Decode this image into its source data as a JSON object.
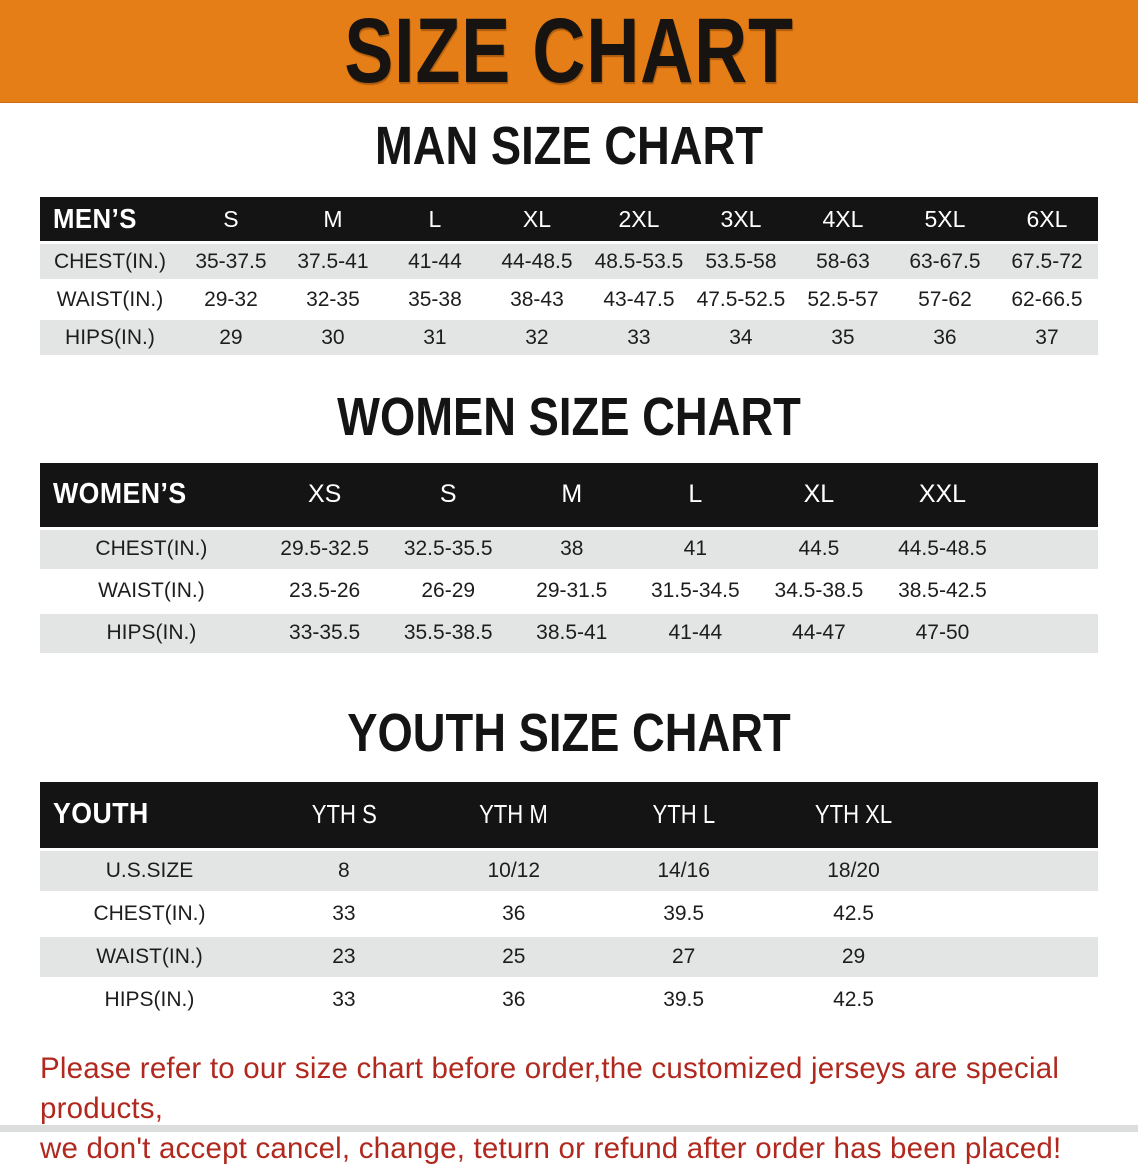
{
  "banner": {
    "title": "SIZE CHART"
  },
  "colors": {
    "banner_bg": "#E67E17",
    "table_header_bg": "#141414",
    "shaded_row_bg": "#E3E5E4",
    "note_text": "#B0281E"
  },
  "sections": {
    "men": {
      "heading": "MAN SIZE CHART",
      "table": {
        "label": "MEN’S",
        "columns": [
          "S",
          "M",
          "L",
          "XL",
          "2XL",
          "3XL",
          "4XL",
          "5XL",
          "6XL"
        ],
        "rows": [
          {
            "label": "CHEST(IN.)",
            "values": [
              "35-37.5",
              "37.5-41",
              "41-44",
              "44-48.5",
              "48.5-53.5",
              "53.5-58",
              "58-63",
              "63-67.5",
              "67.5-72"
            ]
          },
          {
            "label": "WAIST(IN.)",
            "values": [
              "29-32",
              "32-35",
              "35-38",
              "38-43",
              "43-47.5",
              "47.5-52.5",
              "52.5-57",
              "57-62",
              "62-66.5"
            ]
          },
          {
            "label": "HIPS(IN.)",
            "values": [
              "29",
              "30",
              "31",
              "32",
              "33",
              "34",
              "35",
              "36",
              "37"
            ]
          }
        ]
      }
    },
    "women": {
      "heading": "WOMEN SIZE CHART",
      "table": {
        "label": "WOMEN’S",
        "columns": [
          "XS",
          "S",
          "M",
          "L",
          "XL",
          "XXL"
        ],
        "rows": [
          {
            "label": "CHEST(IN.)",
            "values": [
              "29.5-32.5",
              "32.5-35.5",
              "38",
              "41",
              "44.5",
              "44.5-48.5"
            ]
          },
          {
            "label": "WAIST(IN.)",
            "values": [
              "23.5-26",
              "26-29",
              "29-31.5",
              "31.5-34.5",
              "34.5-38.5",
              "38.5-42.5"
            ]
          },
          {
            "label": "HIPS(IN.)",
            "values": [
              "33-35.5",
              "35.5-38.5",
              "38.5-41",
              "41-44",
              "44-47",
              "47-50"
            ]
          }
        ]
      }
    },
    "youth": {
      "heading": "YOUTH SIZE CHART",
      "table": {
        "label": "YOUTH",
        "columns": [
          "YTH S",
          "YTH M",
          "YTH L",
          "YTH XL"
        ],
        "rows": [
          {
            "label": "U.S.SIZE",
            "values": [
              "8",
              "10/12",
              "14/16",
              "18/20"
            ]
          },
          {
            "label": "CHEST(IN.)",
            "values": [
              "33",
              "36",
              "39.5",
              "42.5"
            ]
          },
          {
            "label": "WAIST(IN.)",
            "values": [
              "23",
              "25",
              "27",
              "29"
            ]
          },
          {
            "label": "HIPS(IN.)",
            "values": [
              "33",
              "36",
              "39.5",
              "42.5"
            ]
          }
        ]
      }
    }
  },
  "note": {
    "line1": "Please refer to our size chart before order,the customized jerseys are special products,",
    "line2": "we don't accept cancel, change, teturn or refund after order has been placed!"
  }
}
